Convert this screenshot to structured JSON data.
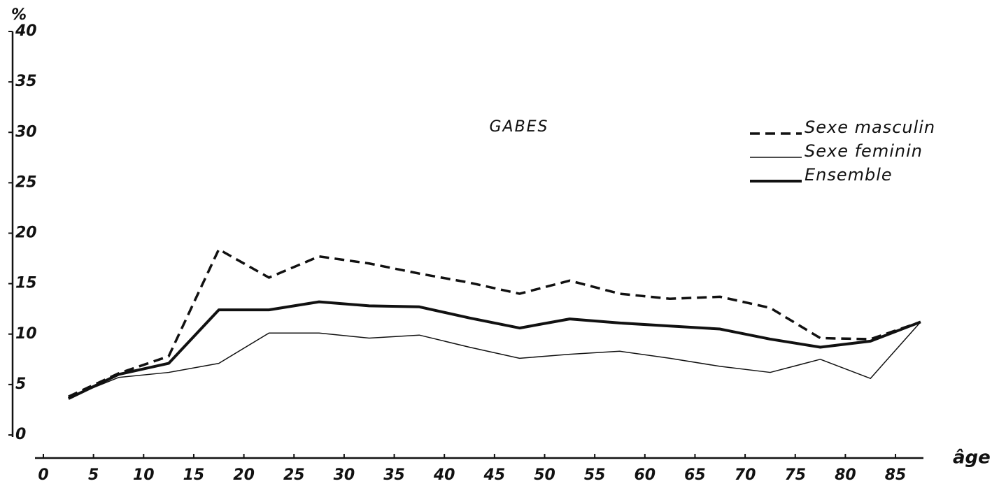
{
  "chart_data": {
    "type": "line",
    "title": "GABES",
    "ylabel": "%",
    "xlabel": "âge",
    "xlim": [
      0,
      90
    ],
    "xticks": [
      0,
      5,
      10,
      15,
      20,
      25,
      30,
      35,
      40,
      45,
      50,
      55,
      60,
      65,
      70,
      75,
      80,
      85
    ],
    "ylim": [
      0,
      40
    ],
    "yticks": [
      0,
      5,
      10,
      15,
      20,
      25,
      30,
      35,
      40
    ],
    "x": [
      2.5,
      7.5,
      12.5,
      17.5,
      22.5,
      27.5,
      32.5,
      37.5,
      42.5,
      47.5,
      52.5,
      57.5,
      62.5,
      67.5,
      72.5,
      77.5,
      82.5,
      87.5
    ],
    "legend": "upper right",
    "series": [
      {
        "name": "Sexe masculin",
        "color": "#111111",
        "style": "dashed",
        "width": 3.5,
        "values": [
          3.8,
          6.1,
          7.8,
          18.4,
          15.6,
          17.7,
          17,
          16,
          15.1,
          14,
          15.3,
          14,
          13.5,
          13.7,
          12.6,
          9.6,
          9.5,
          11.2
        ]
      },
      {
        "name": "Sexe feminin",
        "color": "#111111",
        "style": "solid",
        "width": 1.5,
        "values": [
          3.7,
          5.7,
          6.2,
          7.1,
          10.1,
          10.1,
          9.6,
          9.9,
          8.7,
          7.6,
          8,
          8.3,
          7.6,
          6.8,
          6.2,
          7.5,
          5.6,
          11.2
        ]
      },
      {
        "name": "Ensemble",
        "color": "#111111",
        "style": "solid",
        "width": 4,
        "values": [
          3.6,
          6,
          7.1,
          12.4,
          12.4,
          13.2,
          12.8,
          12.7,
          11.6,
          10.6,
          11.5,
          11.1,
          10.8,
          10.5,
          9.5,
          8.7,
          9.3,
          11.2
        ]
      }
    ]
  }
}
